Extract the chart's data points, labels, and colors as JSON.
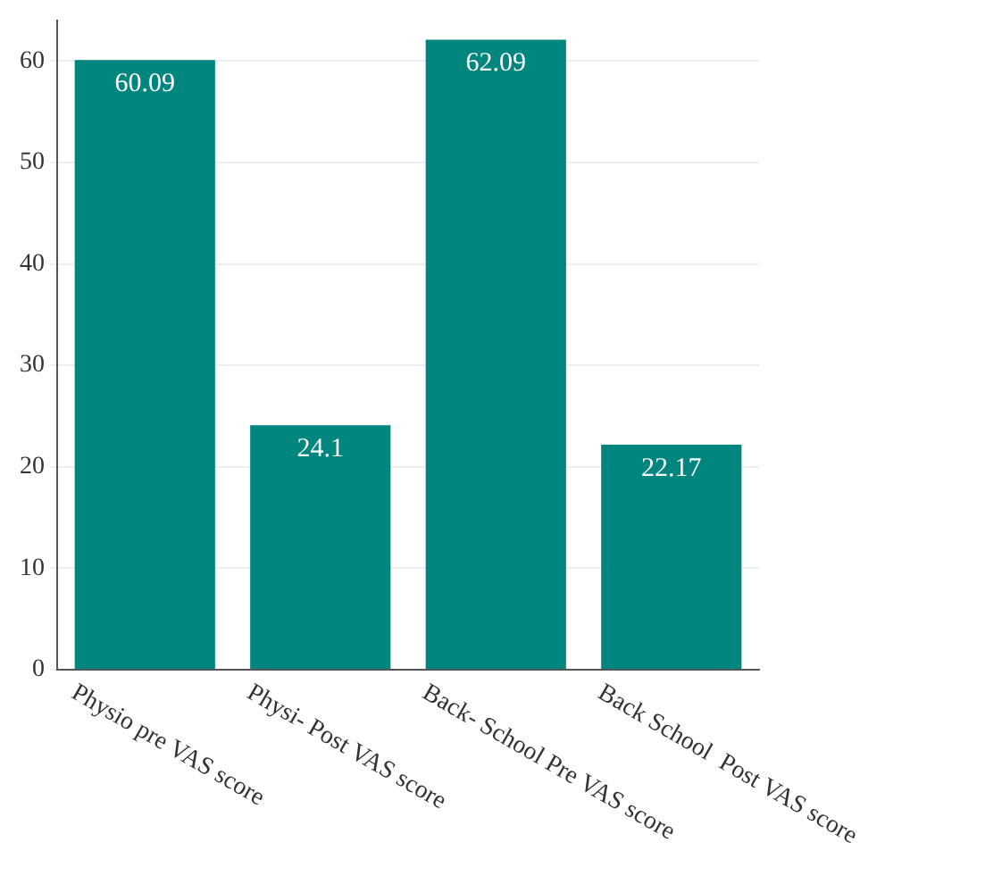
{
  "chart_data": {
    "type": "bar",
    "categories": [
      "Physio pre VAS score",
      "Physi- Post VAS score",
      "Back- School Pre VAS score",
      "Back School  Post VAS score"
    ],
    "values": [
      60.09,
      24.1,
      62.09,
      22.17
    ],
    "color": "#00857f",
    "ylim": [
      0,
      64
    ],
    "yticks": [
      0,
      10,
      20,
      30,
      40,
      50,
      60
    ],
    "grid": "y",
    "data_labels": true,
    "legend": false
  }
}
